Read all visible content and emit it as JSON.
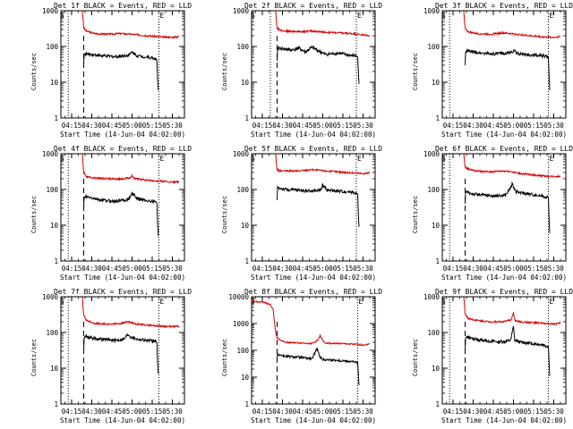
{
  "page": {
    "shared_xlabel": "Start Time (14-Jun-04 04:02:00)",
    "shared_ylabel": "Counts/sec",
    "x_tick_labels": [
      "04:15",
      "04:30",
      "04:45",
      "05:00",
      "05:15",
      "05:30"
    ],
    "y_tick_labels": [
      "1",
      "10",
      "100",
      "1000"
    ],
    "marker_start": "S",
    "marker_end": "E"
  },
  "chart_data": [
    {
      "type": "line",
      "title": "Det 1f BLACK = Events, RED = LLD",
      "xlabel": "Start Time (14-Jun-04 04:02:00)",
      "ylabel": "Counts/sec",
      "x_unit": "minutes after 04:02",
      "xlim": [
        5,
        97
      ],
      "ylim": [
        1,
        1000
      ],
      "yscale": "log",
      "x_tick_values": [
        13,
        28,
        43,
        58,
        73,
        88
      ],
      "x_tick_labels": [
        "04:15",
        "04:30",
        "04:45",
        "05:00",
        "05:15",
        "05:30"
      ],
      "y_tick_labels": [
        "1",
        "10",
        "100",
        "1000"
      ],
      "vlines": {
        "dotted": [
          10.5,
          78
        ],
        "dashed": [
          22
        ]
      },
      "markers": {
        "S": 9,
        "E": 78
      },
      "series": [
        {
          "name": "LLD",
          "color": "red",
          "x": [
            21,
            21.5,
            22,
            24,
            30,
            40,
            50,
            60,
            70,
            80,
            88,
            93
          ],
          "y": [
            1000,
            600,
            330,
            270,
            230,
            220,
            230,
            215,
            200,
            185,
            180,
            190
          ]
        },
        {
          "name": "Events",
          "color": "black",
          "x": [
            22,
            22.3,
            23,
            28,
            35,
            45,
            52,
            56,
            58,
            62,
            70,
            76,
            76.5,
            77,
            77.5
          ],
          "y": [
            30,
            60,
            62,
            60,
            55,
            52,
            55,
            58,
            70,
            55,
            50,
            45,
            40,
            12,
            6
          ]
        }
      ]
    },
    {
      "type": "line",
      "title": "Det 2f BLACK = Events, RED = LLD",
      "xlabel": "Start Time (14-Jun-04 04:02:00)",
      "ylabel": "Counts/sec",
      "x_unit": "minutes after 04:02",
      "xlim": [
        5,
        97
      ],
      "ylim": [
        1,
        1000
      ],
      "yscale": "log",
      "x_tick_values": [
        13,
        28,
        43,
        58,
        73,
        88
      ],
      "x_tick_labels": [
        "04:15",
        "04:30",
        "04:45",
        "05:00",
        "05:15",
        "05:30"
      ],
      "y_tick_labels": [
        "1",
        "10",
        "100",
        "1000"
      ],
      "vlines": {
        "dotted": [
          19,
          83
        ],
        "dashed": [
          24
        ]
      },
      "markers": {
        "S": 9,
        "E": 83
      },
      "series": [
        {
          "name": "LLD",
          "color": "red",
          "x": [
            23,
            23.5,
            24,
            26,
            30,
            40,
            50,
            60,
            70,
            80,
            88,
            93
          ],
          "y": [
            1000,
            500,
            330,
            290,
            270,
            260,
            270,
            250,
            240,
            230,
            210,
            200
          ]
        },
        {
          "name": "Events",
          "color": "black",
          "x": [
            24,
            24.3,
            25,
            30,
            35,
            40,
            45,
            50,
            55,
            60,
            70,
            80,
            83,
            84,
            84.5,
            85
          ],
          "y": [
            40,
            80,
            90,
            85,
            80,
            90,
            70,
            95,
            75,
            60,
            65,
            55,
            55,
            50,
            20,
            9
          ]
        }
      ]
    },
    {
      "type": "line",
      "title": "Det 3f BLACK = Events, RED = LLD",
      "xlabel": "Start Time (14-Jun-04 04:02:00)",
      "ylabel": "Counts/sec",
      "x_unit": "minutes after 04:02",
      "xlim": [
        5,
        97
      ],
      "ylim": [
        1,
        1000
      ],
      "yscale": "log",
      "x_tick_values": [
        13,
        28,
        43,
        58,
        73,
        88
      ],
      "x_tick_labels": [
        "04:15",
        "04:30",
        "04:45",
        "05:00",
        "05:15",
        "05:30"
      ],
      "y_tick_labels": [
        "1",
        "10",
        "100",
        "1000"
      ],
      "vlines": {
        "dotted": [
          10.5,
          84
        ]
      },
      "markers": {
        "S": 9,
        "E": 84
      },
      "series": [
        {
          "name": "LLD",
          "color": "red",
          "x": [
            21,
            21.5,
            22,
            24,
            30,
            40,
            50,
            60,
            70,
            80,
            88,
            93
          ],
          "y": [
            1000,
            500,
            330,
            260,
            230,
            220,
            240,
            220,
            200,
            185,
            180,
            190
          ]
        },
        {
          "name": "Events",
          "color": "black",
          "x": [
            22,
            22.3,
            23,
            28,
            35,
            45,
            52,
            56,
            58,
            62,
            70,
            80,
            84,
            84.5,
            85
          ],
          "y": [
            30,
            70,
            75,
            70,
            65,
            62,
            65,
            68,
            75,
            62,
            58,
            55,
            50,
            15,
            6
          ]
        }
      ]
    },
    {
      "type": "line",
      "title": "Det 4f BLACK = Events, RED = LLD",
      "xlabel": "Start Time (14-Jun-04 04:02:00)",
      "ylabel": "Counts/sec",
      "x_unit": "minutes after 04:02",
      "xlim": [
        5,
        97
      ],
      "ylim": [
        1,
        1000
      ],
      "yscale": "log",
      "x_tick_values": [
        13,
        28,
        43,
        58,
        73,
        88
      ],
      "x_tick_labels": [
        "04:15",
        "04:30",
        "04:45",
        "05:00",
        "05:15",
        "05:30"
      ],
      "y_tick_labels": [
        "1",
        "10",
        "100",
        "1000"
      ],
      "vlines": {
        "dotted": [
          10.5,
          78
        ],
        "dashed": [
          22
        ]
      },
      "markers": {
        "S": 9,
        "E": 78
      },
      "series": [
        {
          "name": "LLD",
          "color": "red",
          "x": [
            21,
            21.5,
            22,
            24,
            30,
            40,
            50,
            56,
            58,
            60,
            70,
            80,
            88,
            93
          ],
          "y": [
            1000,
            500,
            300,
            230,
            210,
            200,
            195,
            210,
            240,
            200,
            180,
            170,
            160,
            165
          ]
        },
        {
          "name": "Events",
          "color": "black",
          "x": [
            22,
            22.3,
            23,
            28,
            35,
            45,
            52,
            56,
            58,
            62,
            70,
            76,
            76.5,
            77,
            77.5
          ],
          "y": [
            30,
            60,
            62,
            58,
            50,
            47,
            50,
            55,
            80,
            55,
            48,
            45,
            40,
            12,
            5
          ]
        }
      ]
    },
    {
      "type": "line",
      "title": "Det 5f BLACK = Events, RED = LLD",
      "xlabel": "Start Time (14-Jun-04 04:02:00)",
      "ylabel": "Counts/sec",
      "x_unit": "minutes after 04:02",
      "xlim": [
        5,
        97
      ],
      "ylim": [
        1,
        1000
      ],
      "yscale": "log",
      "x_tick_values": [
        13,
        28,
        43,
        58,
        73,
        88
      ],
      "x_tick_labels": [
        "04:15",
        "04:30",
        "04:45",
        "05:00",
        "05:15",
        "05:30"
      ],
      "y_tick_labels": [
        "1",
        "10",
        "100",
        "1000"
      ],
      "vlines": {
        "dotted": [
          83
        ]
      },
      "markers": {
        "S": 9,
        "E": 83
      },
      "series": [
        {
          "name": "LLD",
          "color": "red",
          "x": [
            23,
            23.5,
            24,
            26,
            30,
            40,
            50,
            60,
            70,
            80,
            88,
            93
          ],
          "y": [
            1000,
            500,
            360,
            330,
            330,
            330,
            360,
            330,
            310,
            290,
            280,
            290
          ]
        },
        {
          "name": "Events",
          "color": "black",
          "x": [
            24,
            24.3,
            25,
            30,
            40,
            50,
            56,
            58,
            62,
            70,
            80,
            83,
            84,
            84.5,
            85
          ],
          "y": [
            50,
            120,
            110,
            100,
            95,
            90,
            95,
            130,
            95,
            90,
            85,
            80,
            75,
            20,
            9
          ]
        }
      ]
    },
    {
      "type": "line",
      "title": "Det 6f BLACK = Events, RED = LLD",
      "xlabel": "Start Time (14-Jun-04 04:02:00)",
      "ylabel": "Counts/sec",
      "x_unit": "minutes after 04:02",
      "xlim": [
        5,
        97
      ],
      "ylim": [
        1,
        1000
      ],
      "yscale": "log",
      "x_tick_values": [
        13,
        28,
        43,
        58,
        73,
        88
      ],
      "x_tick_labels": [
        "04:15",
        "04:30",
        "04:45",
        "05:00",
        "05:15",
        "05:30"
      ],
      "y_tick_labels": [
        "1",
        "10",
        "100",
        "1000"
      ],
      "vlines": {
        "dotted": [
          10.5,
          84
        ],
        "dashed": [
          22
        ]
      },
      "markers": {
        "S": 9,
        "E": 84
      },
      "series": [
        {
          "name": "LLD",
          "color": "red",
          "x": [
            21,
            21.5,
            22,
            24,
            30,
            40,
            50,
            56,
            60,
            70,
            80,
            88,
            93
          ],
          "y": [
            1000,
            600,
            420,
            380,
            330,
            310,
            330,
            320,
            290,
            260,
            240,
            230,
            235
          ]
        },
        {
          "name": "Events",
          "color": "black",
          "x": [
            22,
            22.3,
            23,
            28,
            35,
            45,
            52,
            55,
            57,
            60,
            70,
            80,
            84,
            84.5,
            85
          ],
          "y": [
            40,
            80,
            85,
            75,
            70,
            65,
            70,
            100,
            140,
            85,
            75,
            65,
            60,
            15,
            6
          ]
        }
      ]
    },
    {
      "type": "line",
      "title": "Det 7f BLACK = Events, RED = LLD",
      "xlabel": "Start Time (14-Jun-04 04:02:00)",
      "ylabel": "Counts/sec",
      "x_unit": "minutes after 04:02",
      "xlim": [
        5,
        97
      ],
      "ylim": [
        1,
        1000
      ],
      "yscale": "log",
      "x_tick_values": [
        13,
        28,
        43,
        58,
        73,
        88
      ],
      "x_tick_labels": [
        "04:15",
        "04:30",
        "04:45",
        "05:00",
        "05:15",
        "05:30"
      ],
      "y_tick_labels": [
        "1",
        "10",
        "100",
        "1000"
      ],
      "vlines": {
        "dotted": [
          10.5,
          78
        ],
        "dashed": [
          22
        ]
      },
      "markers": {
        "S": 9,
        "E": 78
      },
      "series": [
        {
          "name": "LLD",
          "color": "red",
          "x": [
            21,
            21.5,
            22,
            24,
            30,
            40,
            50,
            55,
            60,
            70,
            80,
            88,
            93
          ],
          "y": [
            1000,
            500,
            300,
            220,
            180,
            170,
            180,
            200,
            175,
            160,
            150,
            145,
            150
          ]
        },
        {
          "name": "Events",
          "color": "black",
          "x": [
            22,
            22.3,
            23,
            28,
            35,
            45,
            52,
            55,
            57,
            62,
            70,
            76,
            76.5,
            77,
            77.5
          ],
          "y": [
            30,
            70,
            80,
            70,
            65,
            60,
            65,
            90,
            75,
            65,
            60,
            55,
            50,
            15,
            7
          ]
        }
      ]
    },
    {
      "type": "line",
      "title": "Det 8f BLACK = Events, RED = LLD",
      "xlabel": "Start Time (14-Jun-04 04:02:00)",
      "ylabel": "Counts/sec",
      "x_unit": "minutes after 04:02",
      "xlim": [
        5,
        97
      ],
      "ylim": [
        1,
        10000
      ],
      "yscale": "log",
      "x_tick_values": [
        13,
        28,
        43,
        58,
        73,
        88
      ],
      "x_tick_labels": [
        "04:15",
        "04:30",
        "04:45",
        "05:00",
        "05:15",
        "05:30"
      ],
      "y_tick_labels": [
        "1",
        "10",
        "100",
        "1000",
        "10000"
      ],
      "vlines": {
        "dotted": [
          84
        ],
        "dashed": [
          24
        ]
      },
      "markers": {
        "S": 9,
        "E": 84
      },
      "series": [
        {
          "name": "LLD",
          "color": "red",
          "x": [
            5,
            15,
            19,
            21,
            22,
            23,
            24,
            26,
            30,
            40,
            50,
            54,
            56,
            58,
            60,
            65,
            70,
            80,
            88,
            93
          ],
          "y": [
            7000,
            6000,
            5000,
            3500,
            1200,
            450,
            300,
            250,
            200,
            190,
            180,
            230,
            350,
            230,
            190,
            180,
            180,
            170,
            160,
            170
          ]
        },
        {
          "name": "Events",
          "color": "black",
          "x": [
            24,
            24.3,
            25,
            30,
            40,
            50,
            54,
            56,
            58,
            60,
            70,
            80,
            84,
            84.5,
            85
          ],
          "y": [
            40,
            75,
            70,
            60,
            55,
            48,
            120,
            55,
            45,
            45,
            42,
            38,
            35,
            12,
            5
          ]
        }
      ]
    },
    {
      "type": "line",
      "title": "Det 9f BLACK = Events, RED = LLD",
      "xlabel": "Start Time (14-Jun-04 04:02:00)",
      "ylabel": "Counts/sec",
      "x_unit": "minutes after 04:02",
      "xlim": [
        5,
        97
      ],
      "ylim": [
        1,
        1000
      ],
      "yscale": "log",
      "x_tick_values": [
        13,
        28,
        43,
        58,
        73,
        88
      ],
      "x_tick_labels": [
        "04:15",
        "04:30",
        "04:45",
        "05:00",
        "05:15",
        "05:30"
      ],
      "y_tick_labels": [
        "1",
        "10",
        "100",
        "1000"
      ],
      "vlines": {
        "dotted": [
          10.5,
          84
        ],
        "dashed": [
          22
        ]
      },
      "markers": {
        "S": 9,
        "E": 84
      },
      "series": [
        {
          "name": "LLD",
          "color": "red",
          "x": [
            21,
            21.5,
            22,
            24,
            30,
            40,
            50,
            56,
            58,
            59,
            62,
            70,
            80,
            88,
            93
          ],
          "y": [
            1000,
            600,
            330,
            250,
            220,
            200,
            200,
            220,
            350,
            220,
            200,
            190,
            180,
            170,
            185
          ]
        },
        {
          "name": "Events",
          "color": "black",
          "x": [
            22,
            22.3,
            23,
            28,
            35,
            45,
            52,
            56,
            58,
            59,
            62,
            70,
            80,
            84,
            84.5,
            85
          ],
          "y": [
            30,
            70,
            75,
            65,
            60,
            55,
            55,
            60,
            150,
            60,
            55,
            50,
            45,
            40,
            15,
            6
          ]
        }
      ]
    }
  ]
}
